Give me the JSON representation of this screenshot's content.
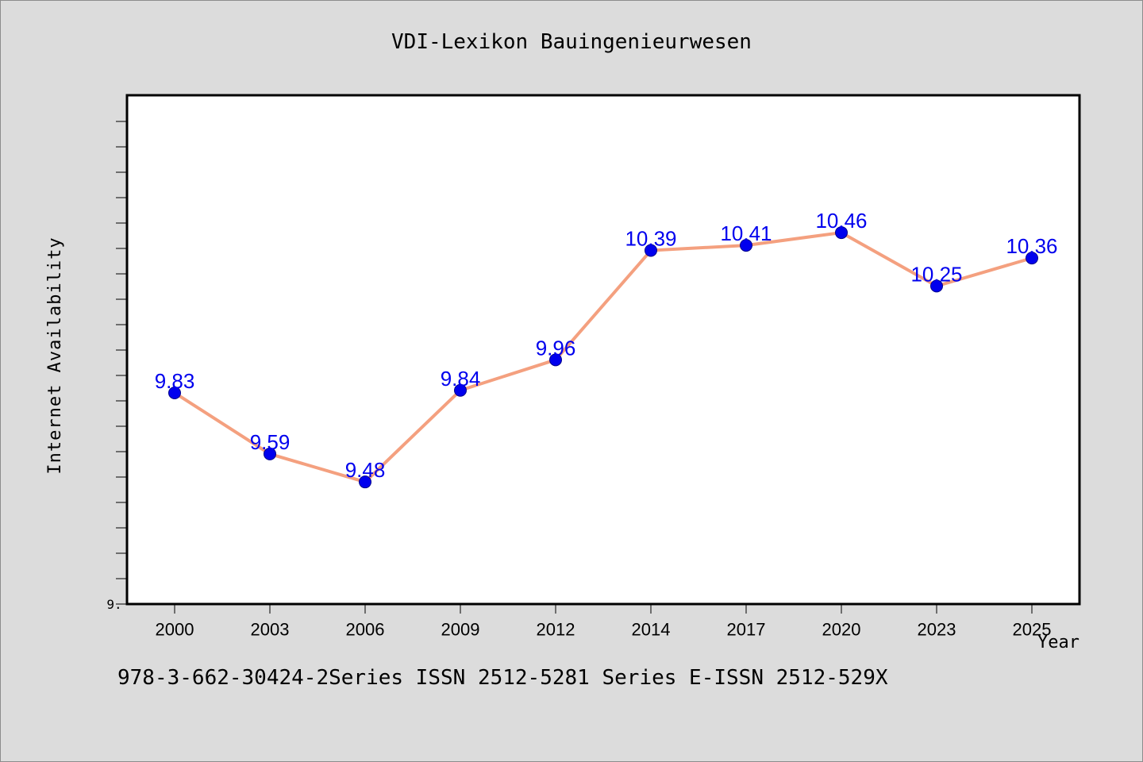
{
  "chart_data": {
    "type": "line",
    "title": "VDI-Lexikon Bauingenieurwesen",
    "xlabel": "Year",
    "ylabel": "Internet Availability",
    "footer": "978-3-662-30424-2Series ISSN 2512-5281 Series E-ISSN 2512-529X",
    "categories": [
      "2000",
      "2003",
      "2006",
      "2009",
      "2012",
      "2014",
      "2017",
      "2020",
      "2023",
      "2025"
    ],
    "series": [
      {
        "values": [
          9.83,
          9.59,
          9.48,
          9.84,
          9.96,
          10.39,
          10.41,
          10.46,
          10.25,
          10.36
        ],
        "labels": [
          "9.83",
          "9.59",
          "9.48",
          "9.84",
          "9.96",
          "10.39",
          "10.41",
          "10.46",
          "10.25",
          "10.36"
        ]
      }
    ],
    "ylim": [
      9.0,
      11.0
    ],
    "y_tick_labels": [
      "9."
    ],
    "grid": false,
    "legend": "none",
    "colors": {
      "line": "#f4a07f",
      "marker": "#0000ee",
      "marker_edge": "#00008b",
      "data_label": "#0000ee",
      "background": "#dcdcdc",
      "plot_area": "#ffffff"
    }
  }
}
